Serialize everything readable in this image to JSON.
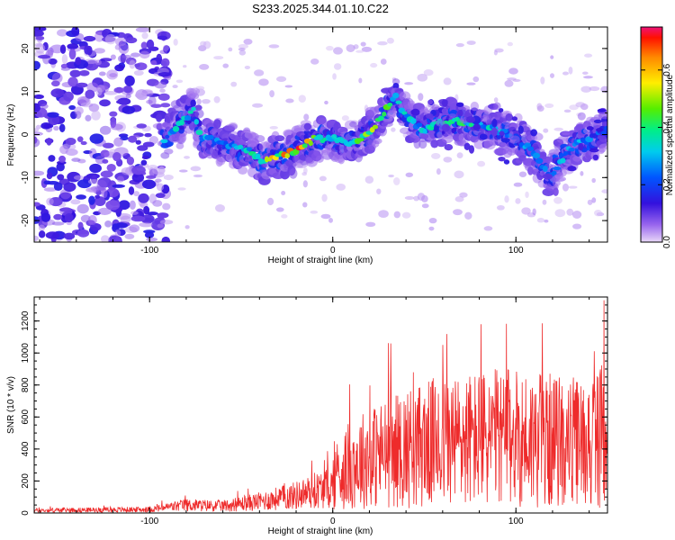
{
  "title": "S233.2025.344.01.10.C22",
  "chart_data": [
    {
      "type": "heatmap",
      "xlabel": "Height of straight line (km)",
      "ylabel": "Frequency (Hz)",
      "xlim": [
        -163,
        150
      ],
      "ylim": [
        -25,
        25
      ],
      "xticks": [
        -100,
        0,
        100
      ],
      "yticks": [
        -20,
        -10,
        0,
        10,
        20
      ],
      "colorbar": {
        "label": "Normalized spectral amplitude",
        "range": [
          0,
          0.75
        ],
        "ticks": [
          0.0,
          0.2,
          0.4,
          0.6
        ]
      },
      "ridge": {
        "x": [
          -92,
          -85,
          -80,
          -76,
          -72,
          -65,
          -55,
          -45,
          -38,
          -30,
          -20,
          -10,
          0,
          10,
          20,
          28,
          34,
          40,
          50,
          58,
          70,
          85,
          100,
          110,
          118,
          130,
          140,
          150
        ],
        "y": [
          -1,
          2,
          4,
          6,
          -1,
          -1,
          -3,
          -4,
          -6,
          -5,
          -4,
          -1,
          -1,
          -2,
          0,
          5,
          9,
          4,
          1,
          3,
          3,
          2,
          -1,
          -4,
          -10,
          -3,
          -1,
          1
        ],
        "peak": [
          0.35,
          0.4,
          0.45,
          0.5,
          0.35,
          0.3,
          0.3,
          0.4,
          0.5,
          0.7,
          0.75,
          0.6,
          0.45,
          0.5,
          0.55,
          0.5,
          0.45,
          0.4,
          0.35,
          0.45,
          0.45,
          0.4,
          0.35,
          0.3,
          0.3,
          0.35,
          0.3,
          0.25
        ]
      }
    },
    {
      "type": "line",
      "xlabel": "Height of straight line (km)",
      "ylabel": "SNR (10 * v/v)",
      "xlim": [
        -163,
        150
      ],
      "ylim": [
        0,
        1350
      ],
      "xticks": [
        -100,
        0,
        100
      ],
      "yticks": [
        0,
        200,
        400,
        600,
        800,
        1000,
        1200
      ],
      "color": "#ee2b2b",
      "envelope": {
        "x": [
          -163,
          -100,
          -80,
          -60,
          -40,
          -20,
          0,
          10,
          20,
          40,
          60,
          80,
          100,
          120,
          140,
          150
        ],
        "y": [
          30,
          40,
          90,
          80,
          130,
          200,
          300,
          420,
          480,
          560,
          620,
          640,
          650,
          620,
          600,
          700
        ]
      },
      "peaks": [
        {
          "x": 81,
          "y": 1180
        },
        {
          "x": 148,
          "y": 1330
        },
        {
          "x": 44,
          "y": 880
        },
        {
          "x": 60,
          "y": 1050
        }
      ]
    }
  ]
}
